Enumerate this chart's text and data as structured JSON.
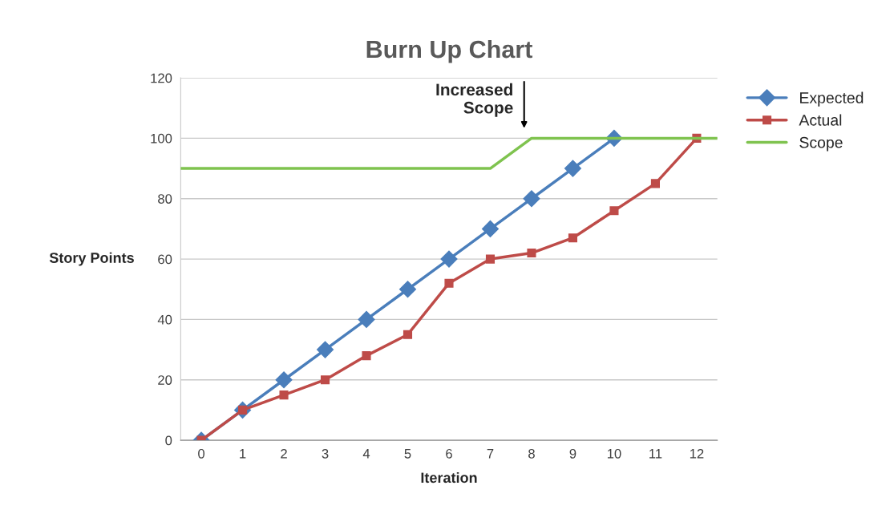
{
  "chart_data": {
    "type": "line",
    "title": "Burn Up Chart",
    "xlabel": "Iteration",
    "ylabel": "Story Points",
    "x": [
      0,
      1,
      2,
      3,
      4,
      5,
      6,
      7,
      8,
      9,
      10,
      11,
      12
    ],
    "series": [
      {
        "name": "Expected",
        "color": "#4a7ebb",
        "marker": "diamond",
        "values": [
          0,
          10,
          20,
          30,
          40,
          50,
          60,
          70,
          80,
          90,
          100,
          null,
          null
        ]
      },
      {
        "name": "Actual",
        "color": "#be4b48",
        "marker": "square",
        "values": [
          0,
          10,
          15,
          20,
          28,
          35,
          52,
          60,
          62,
          67,
          76,
          85,
          100
        ]
      },
      {
        "name": "Scope",
        "color": "#7fc34f",
        "marker": "none",
        "x": [
          -0.5,
          7,
          8,
          12.5
        ],
        "values": [
          90,
          90,
          100,
          100
        ]
      }
    ],
    "xlim": [
      -0.5,
      12.5
    ],
    "xticks": [
      0,
      1,
      2,
      3,
      4,
      5,
      6,
      7,
      8,
      9,
      10,
      11,
      12
    ],
    "ylim": [
      0,
      120
    ],
    "yticks": [
      0,
      20,
      40,
      60,
      80,
      100,
      120
    ],
    "grid": "y",
    "legend": "right",
    "annotations": [
      "Increased\nScope"
    ]
  }
}
